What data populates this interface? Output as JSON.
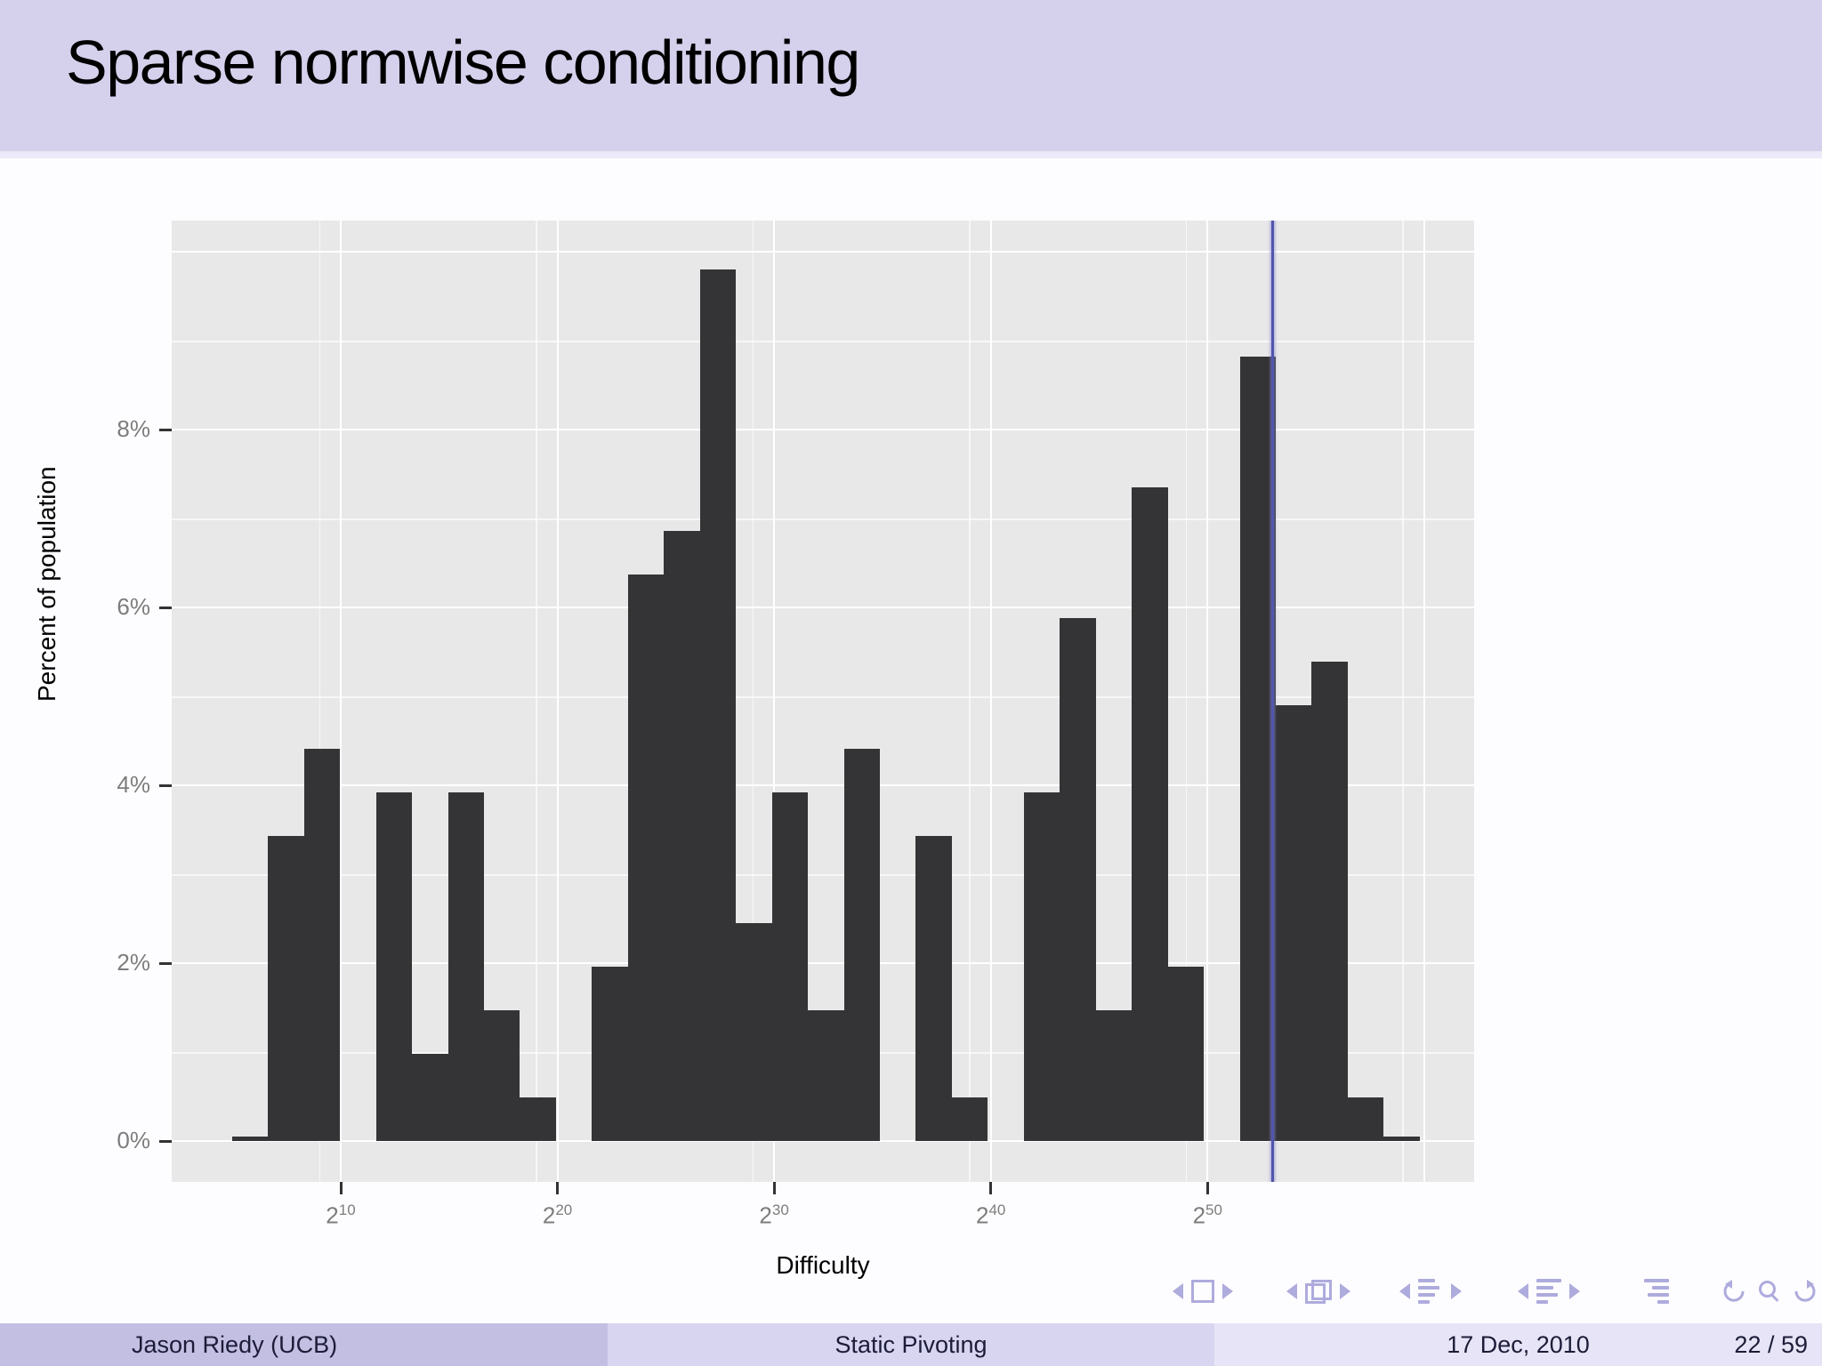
{
  "title_bar": {
    "text": "Sparse normwise conditioning"
  },
  "footer": {
    "author": "Jason Riedy  (UCB)",
    "deck_title": "Static Pivoting",
    "date": "17 Dec, 2010",
    "page": "22 / 59"
  },
  "nav": {
    "icons": [
      "prev-slide",
      "frame-box",
      "next-slide",
      "prev-frame",
      "frame-overlay",
      "next-frame",
      "prev-subsection",
      "subsection-list",
      "next-subsection",
      "prev-section",
      "section-list",
      "next-section",
      "appendix-list",
      "undo",
      "search",
      "redo"
    ],
    "color": "#aeabdd"
  },
  "chart_data": {
    "type": "bar",
    "variant": "histogram",
    "title": "",
    "xlabel": "Difficulty",
    "ylabel": "Percent of population",
    "x_scale": "log",
    "x_tick_base": "2",
    "x_tick_exponents": [
      10,
      20,
      30,
      40,
      50
    ],
    "x_minor_exponents": [
      9,
      19,
      29,
      39,
      49,
      59
    ],
    "x_extra_gridline_exponent": 60,
    "y_ticks": [
      {
        "value": 0,
        "label": "0%"
      },
      {
        "value": 2,
        "label": "2%"
      },
      {
        "value": 4,
        "label": "4%"
      },
      {
        "value": 6,
        "label": "6%"
      },
      {
        "value": 8,
        "label": "8%"
      }
    ],
    "y_major_values": [
      0,
      2,
      4,
      6,
      8,
      10
    ],
    "y_minor_values": [
      1,
      3,
      5,
      7,
      9
    ],
    "ylim": [
      0,
      10.4
    ],
    "legend": "none",
    "grid": "on",
    "bins_log10": [
      {
        "lo": 1.5,
        "hi": 2.0,
        "pct": 0.05
      },
      {
        "lo": 2.0,
        "hi": 2.5,
        "pct": 3.43
      },
      {
        "lo": 2.5,
        "hi": 3.0,
        "pct": 4.41
      },
      {
        "lo": 3.5,
        "hi": 4.0,
        "pct": 3.92
      },
      {
        "lo": 4.0,
        "hi": 4.5,
        "pct": 0.98
      },
      {
        "lo": 4.5,
        "hi": 5.0,
        "pct": 3.92
      },
      {
        "lo": 5.0,
        "hi": 5.5,
        "pct": 1.47
      },
      {
        "lo": 5.5,
        "hi": 6.0,
        "pct": 0.49
      },
      {
        "lo": 6.5,
        "hi": 7.0,
        "pct": 1.96
      },
      {
        "lo": 7.0,
        "hi": 7.5,
        "pct": 6.37
      },
      {
        "lo": 7.5,
        "hi": 8.0,
        "pct": 6.86
      },
      {
        "lo": 8.0,
        "hi": 8.5,
        "pct": 9.8
      },
      {
        "lo": 8.5,
        "hi": 9.0,
        "pct": 2.45
      },
      {
        "lo": 9.0,
        "hi": 9.5,
        "pct": 3.92
      },
      {
        "lo": 9.5,
        "hi": 10.0,
        "pct": 1.47
      },
      {
        "lo": 10.0,
        "hi": 10.5,
        "pct": 4.41
      },
      {
        "lo": 11.0,
        "hi": 11.5,
        "pct": 3.43
      },
      {
        "lo": 11.5,
        "hi": 12.0,
        "pct": 0.49
      },
      {
        "lo": 12.5,
        "hi": 13.0,
        "pct": 3.92
      },
      {
        "lo": 13.0,
        "hi": 13.5,
        "pct": 5.88
      },
      {
        "lo": 13.5,
        "hi": 14.0,
        "pct": 1.47
      },
      {
        "lo": 14.0,
        "hi": 14.5,
        "pct": 7.35
      },
      {
        "lo": 14.5,
        "hi": 15.0,
        "pct": 1.96
      },
      {
        "lo": 15.5,
        "hi": 16.0,
        "pct": 8.82
      },
      {
        "lo": 16.0,
        "hi": 16.5,
        "pct": 4.9
      },
      {
        "lo": 16.5,
        "hi": 17.0,
        "pct": 5.39
      },
      {
        "lo": 17.0,
        "hi": 17.5,
        "pct": 0.49
      },
      {
        "lo": 17.5,
        "hi": 18.0,
        "pct": 0.05
      }
    ],
    "vline": {
      "exponent_base2": 53,
      "color": "#5356ad"
    },
    "colors": {
      "bar": "#343436",
      "panel_bg": "#e8e8e8",
      "grid_major": "#ffffff",
      "grid_minor": "rgba(255,255,255,0.65)",
      "tick_label": "#7d7d7d",
      "axis_title": "#000000"
    }
  }
}
